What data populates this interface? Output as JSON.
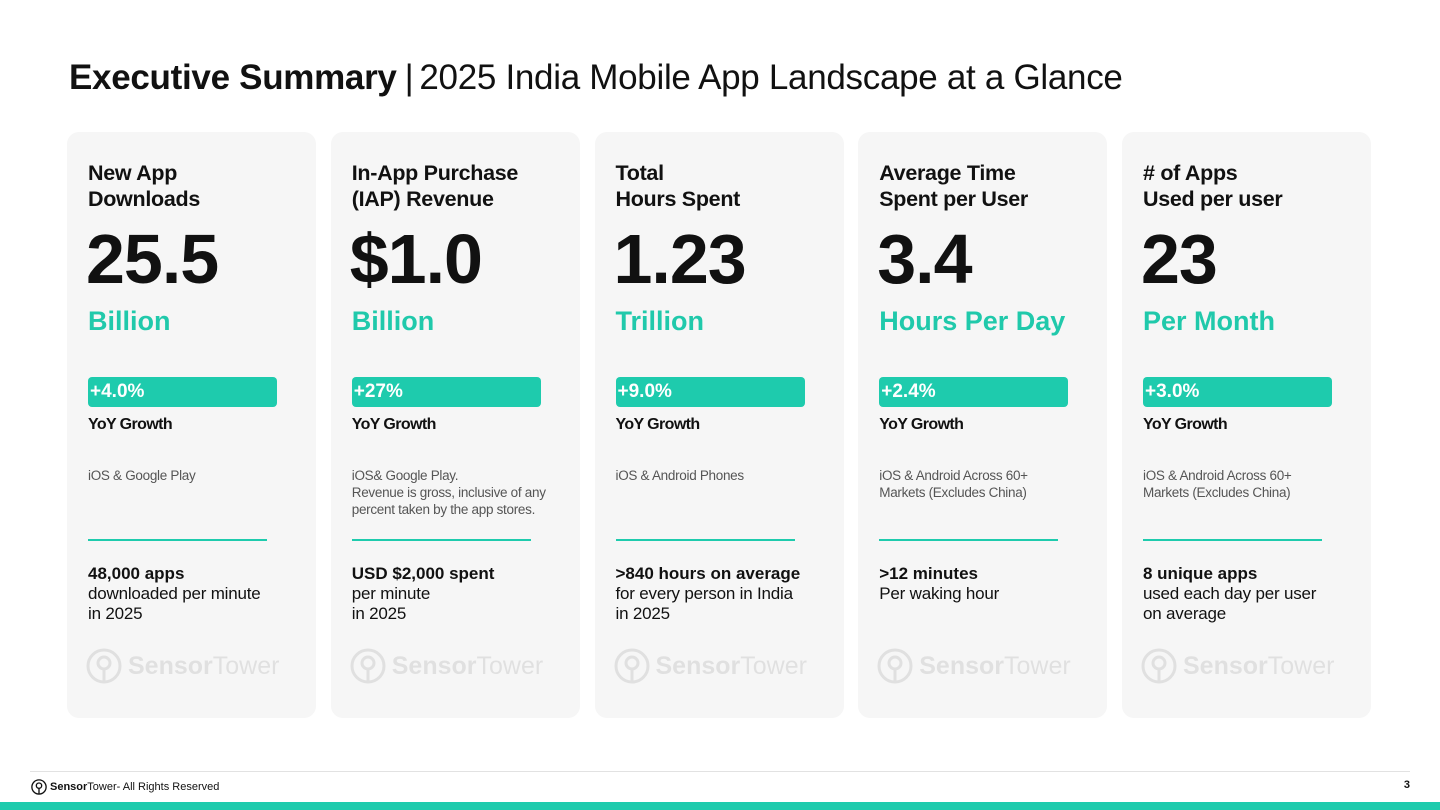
{
  "header": {
    "title_bold": "Executive Summary",
    "separator": "|",
    "title_rest": "2025 India Mobile App Landscape at a Glance"
  },
  "cards": [
    {
      "title": "New App\nDownloads",
      "value": "25.5",
      "unit": "Billion",
      "growth": "+4.0%",
      "growth_label": "YoY Growth",
      "source": "iOS & Google Play",
      "detail_strong": "48,000 apps",
      "detail_text": "downloaded per minute\nin 2025"
    },
    {
      "title": "In-App Purchase\n(IAP) Revenue",
      "value": "$1.0",
      "unit": "Billion",
      "growth": "+27%",
      "growth_label": "YoY Growth",
      "source": "iOS& Google Play.\nRevenue is gross, inclusive of any\npercent taken by the app stores.",
      "detail_strong": "USD $2,000 spent",
      "detail_text": "per minute\nin 2025"
    },
    {
      "title": "Total\nHours Spent",
      "value": "1.23",
      "unit": "Trillion",
      "growth": "+9.0%",
      "growth_label": "YoY Growth",
      "source": "iOS & Android Phones",
      "detail_strong": ">840 hours on average",
      "detail_text": "for every person in India\nin 2025"
    },
    {
      "title": "Average Time\nSpent per User",
      "value": "3.4",
      "unit": "Hours Per Day",
      "growth": "+2.4%",
      "growth_label": "YoY Growth",
      "source": "iOS & Android Across 60+\nMarkets (Excludes China)",
      "detail_strong": ">12 minutes",
      "detail_text": "Per waking hour"
    },
    {
      "title": "# of Apps\nUsed per user",
      "value": "23",
      "unit": "Per Month",
      "growth": "+3.0%",
      "growth_label": "YoY Growth",
      "source": "iOS & Android Across 60+\nMarkets (Excludes China)",
      "detail_strong": "8 unique apps",
      "detail_text": "used each day per user\non average"
    }
  ],
  "watermark": {
    "brand_bold": "Sensor",
    "brand_regular": "Tower"
  },
  "footer": {
    "brand_bold": "Sensor",
    "brand_regular": "Tower",
    "rights": " - All Rights Reserved",
    "page_number": "3"
  },
  "colors": {
    "accent": "#1ecbad",
    "card_background": "#f6f6f6",
    "text": "#111111"
  },
  "icons": {
    "brand_logo": "sensor-tower-logo-icon"
  }
}
